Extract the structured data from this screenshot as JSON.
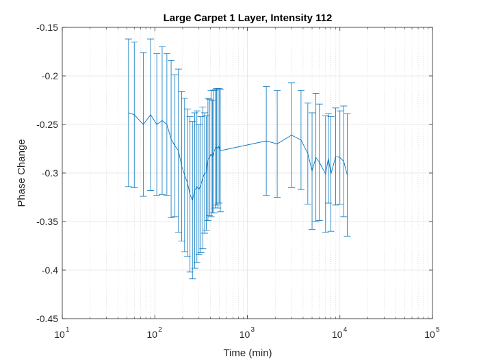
{
  "chart_data": {
    "type": "line",
    "title": "Large Carpet 1 Layer, Intensity 112",
    "xlabel": "Time (min)",
    "ylabel": "Phase Change",
    "xscale": "log",
    "xlim": [
      10,
      100000
    ],
    "ylim": [
      -0.45,
      -0.15
    ],
    "grid": true,
    "minor_grid": true,
    "color": "#0072BD",
    "x_ticks": [
      {
        "base": "10",
        "exp": "1"
      },
      {
        "base": "10",
        "exp": "2"
      },
      {
        "base": "10",
        "exp": "3"
      },
      {
        "base": "10",
        "exp": "4"
      },
      {
        "base": "10",
        "exp": "5"
      }
    ],
    "y_ticks": [
      "-0.15",
      "-0.2",
      "-0.25",
      "-0.3",
      "-0.35",
      "-0.4",
      "-0.45"
    ],
    "y_tick_values": [
      -0.15,
      -0.2,
      -0.25,
      -0.3,
      -0.35,
      -0.4,
      -0.45
    ],
    "series": [
      {
        "x": [
          52,
          60,
          75,
          90,
          105,
          120,
          135,
          150,
          165,
          180,
          195,
          210,
          225,
          240,
          255,
          270,
          285,
          300,
          315,
          330,
          345,
          360,
          375,
          390,
          405,
          420,
          435,
          450,
          465,
          480,
          495,
          510,
          1600,
          2100,
          3000,
          3800,
          4500,
          5000,
          5500,
          6000,
          7000,
          7500,
          8000,
          9000,
          10000,
          11000,
          12000
        ],
        "y": [
          -0.238,
          -0.24,
          -0.25,
          -0.24,
          -0.25,
          -0.246,
          -0.25,
          -0.265,
          -0.272,
          -0.277,
          -0.293,
          -0.302,
          -0.31,
          -0.322,
          -0.328,
          -0.318,
          -0.314,
          -0.317,
          -0.312,
          -0.305,
          -0.3,
          -0.3,
          -0.286,
          -0.284,
          -0.28,
          -0.283,
          -0.278,
          -0.275,
          -0.273,
          -0.275,
          -0.272,
          -0.277,
          -0.267,
          -0.27,
          -0.261,
          -0.266,
          -0.28,
          -0.298,
          -0.284,
          -0.289,
          -0.301,
          -0.285,
          -0.301,
          -0.283,
          -0.284,
          -0.288,
          -0.302
        ],
        "err": [
          0.076,
          0.075,
          0.074,
          0.078,
          0.073,
          0.076,
          0.073,
          0.081,
          0.073,
          0.084,
          0.077,
          0.079,
          0.076,
          0.08,
          0.081,
          0.08,
          0.078,
          0.067,
          0.07,
          0.073,
          0.062,
          0.059,
          0.063,
          0.06,
          0.065,
          0.058,
          0.063,
          0.061,
          0.06,
          0.061,
          0.059,
          0.063,
          0.056,
          0.055,
          0.054,
          0.051,
          0.052,
          0.06,
          0.066,
          0.06,
          0.06,
          0.046,
          0.059,
          0.05,
          0.048,
          0.057,
          0.063
        ]
      }
    ]
  }
}
